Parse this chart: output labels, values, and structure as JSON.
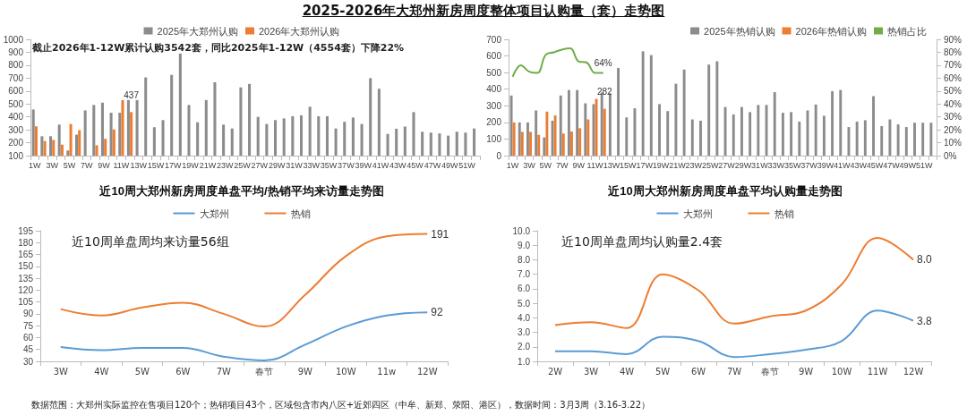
{
  "chart_data": [
    {
      "type": "bar",
      "title": "2025-2026年大郑州新房周度整体项目认购量（套）走势图",
      "categories": [
        "1W",
        null,
        "3W",
        null,
        "5W",
        null,
        "7W",
        null,
        "9W",
        null,
        "11W",
        null,
        "13W",
        null,
        "15W",
        null,
        "17W",
        null,
        "19W",
        null,
        "21W",
        null,
        "23W",
        null,
        "25W",
        null,
        "27W",
        null,
        "29W",
        null,
        "31W",
        null,
        "33W",
        null,
        "35W",
        null,
        "37W",
        null,
        "39W",
        null,
        "41W",
        null,
        "43W",
        null,
        "45W",
        null,
        "47W",
        null,
        "49W",
        null,
        "51W",
        null
      ],
      "series": [
        {
          "name": "2025年大郑州认购",
          "color": "#8c8c8c",
          "values": [
            457,
            250,
            250,
            340,
            140,
            262,
            450,
            492,
            510,
            432,
            432,
            530,
            530,
            705,
            320,
            375,
            725,
            890,
            492,
            358,
            530,
            668,
            340,
            310,
            628,
            655,
            400,
            345,
            375,
            388,
            405,
            412,
            478,
            405,
            405,
            310,
            362,
            395,
            345,
            700,
            618,
            268,
            308,
            325,
            437,
            285,
            278,
            272,
            255,
            285,
            278,
            310
          ]
        },
        {
          "name": "2026年大郑州认购",
          "color": "#ed7d31",
          "values": [
            327,
            213,
            222,
            185,
            345,
            297,
            null,
            180,
            230,
            303,
            530,
            437,
            null,
            null,
            null,
            null,
            null,
            null,
            null,
            null,
            null,
            null,
            null,
            null,
            null,
            null,
            null,
            null,
            null,
            null,
            null,
            null,
            null,
            null,
            null,
            null,
            null,
            null,
            null,
            null,
            null,
            null,
            null,
            null,
            null,
            null,
            null,
            null,
            null,
            null,
            null,
            null
          ],
          "value_labels": [
            null,
            null,
            null,
            null,
            null,
            null,
            null,
            null,
            null,
            null,
            null,
            "437",
            null,
            null,
            null,
            null,
            null,
            null,
            null,
            null,
            null,
            null,
            null,
            null,
            null,
            null,
            null,
            null,
            null,
            null,
            null,
            null,
            null,
            null,
            null,
            null,
            null,
            null,
            null,
            null,
            null,
            null,
            null,
            null,
            null,
            null,
            null,
            null,
            null,
            null,
            null,
            null
          ]
        }
      ],
      "ylim": [
        100,
        1000
      ],
      "yticks": [
        100,
        200,
        300,
        400,
        500,
        600,
        700,
        800,
        900,
        1000
      ],
      "grid": false,
      "legend": "top",
      "annotations": [
        "截止2026年1-12W累计认购3542套，同比2025年1-12W（4554套）下降22%"
      ]
    },
    {
      "type": "bar",
      "categories": [
        "1W",
        null,
        "3W",
        null,
        "5W",
        null,
        "7W",
        null,
        "9W",
        null,
        "11W",
        null,
        "13W",
        null,
        "15W",
        null,
        "17W",
        null,
        "19W",
        null,
        "21W",
        null,
        "23W",
        null,
        "25W",
        null,
        "27W",
        null,
        "29W",
        null,
        "31W",
        null,
        "33W",
        null,
        "35W",
        null,
        "37W",
        null,
        "39W",
        null,
        "41W",
        null,
        "43W",
        null,
        "45W",
        null,
        "47W",
        null,
        "49W",
        null,
        "51W",
        null
      ],
      "series": [
        {
          "name": "2025年热销认购",
          "color": "#8c8c8c",
          "values": [
            362,
            200,
            200,
            272,
            110,
            210,
            362,
            395,
            395,
            315,
            310,
            380,
            375,
            528,
            230,
            285,
            628,
            605,
            310,
            268,
            433,
            518,
            218,
            210,
            548,
            568,
            293,
            248,
            293,
            262,
            305,
            305,
            382,
            258,
            262,
            205,
            272,
            308,
            240,
            388,
            395,
            172,
            205,
            213,
            358,
            178,
            218,
            188,
            172,
            198,
            198,
            198
          ]
        },
        {
          "name": "2026年热销认购",
          "color": "#ed7d31",
          "values": [
            200,
            143,
            143,
            125,
            265,
            242,
            133,
            145,
            165,
            218,
            342,
            282,
            null,
            null,
            null,
            null,
            null,
            null,
            null,
            null,
            null,
            null,
            null,
            null,
            null,
            null,
            null,
            null,
            null,
            null,
            null,
            null,
            null,
            null,
            null,
            null,
            null,
            null,
            null,
            null,
            null,
            null,
            null,
            null,
            null,
            null,
            null,
            null,
            null,
            null,
            null,
            null
          ],
          "value_labels": [
            null,
            null,
            null,
            null,
            null,
            null,
            null,
            null,
            null,
            null,
            null,
            "282",
            null,
            null,
            null,
            null,
            null,
            null,
            null,
            null,
            null,
            null,
            null,
            null,
            null,
            null,
            null,
            null,
            null,
            null,
            null,
            null,
            null,
            null,
            null,
            null,
            null,
            null,
            null,
            null,
            null,
            null,
            null,
            null,
            null,
            null,
            null,
            null,
            null,
            null,
            null,
            null
          ]
        },
        {
          "name": "热销占比",
          "type": "line",
          "axis": "y2",
          "color": "#70ad47",
          "values": [
            61,
            70,
            65,
            64,
            78,
            80,
            82,
            83,
            73,
            72,
            64,
            64,
            null,
            null,
            null,
            null,
            null,
            null,
            null,
            null,
            null,
            null,
            null,
            null,
            null,
            null,
            null,
            null,
            null,
            null,
            null,
            null,
            null,
            null,
            null,
            null,
            null,
            null,
            null,
            null,
            null,
            null,
            null,
            null,
            null,
            null,
            null,
            null,
            null,
            null,
            null,
            null
          ],
          "value_labels": [
            null,
            null,
            null,
            null,
            null,
            null,
            null,
            null,
            null,
            null,
            null,
            "64%",
            null,
            null,
            null,
            null,
            null,
            null,
            null,
            null,
            null,
            null,
            null,
            null,
            null,
            null,
            null,
            null,
            null,
            null,
            null,
            null,
            null,
            null,
            null,
            null,
            null,
            null,
            null,
            null,
            null,
            null,
            null,
            null,
            null,
            null,
            null,
            null,
            null,
            null,
            null,
            null
          ]
        }
      ],
      "ylim": [
        0,
        700
      ],
      "yticks": [
        0,
        100,
        200,
        300,
        400,
        500,
        600,
        700
      ],
      "y2lim": [
        0,
        90
      ],
      "y2ticks": [
        {
          "value": 0,
          "label": "0%"
        },
        {
          "value": 10,
          "label": "10%"
        },
        {
          "value": 20,
          "label": "20%"
        },
        {
          "value": 30,
          "label": "30%"
        },
        {
          "value": 40,
          "label": "40%"
        },
        {
          "value": 50,
          "label": "50%"
        },
        {
          "value": 60,
          "label": "60%"
        },
        {
          "value": 70,
          "label": "70%"
        },
        {
          "value": 80,
          "label": "80%"
        },
        {
          "value": 90,
          "label": "90%"
        }
      ],
      "grid": false,
      "legend": "top right",
      "marker": "none"
    },
    {
      "type": "line",
      "title": "近10周大郑州新房周度单盘平均/热销平均来访量走势图",
      "categories": [
        "3W",
        "4W",
        "5W",
        "6W",
        "7W",
        "春节",
        "9W",
        "10W",
        "11w",
        "12W"
      ],
      "series": [
        {
          "name": "大郑州",
          "color": "#5b9bd5",
          "values": [
            48,
            44,
            47,
            47,
            36,
            31,
            51,
            74,
            88,
            92
          ],
          "value_labels": [
            null,
            null,
            null,
            null,
            null,
            null,
            null,
            null,
            null,
            "92"
          ]
        },
        {
          "name": "热销",
          "color": "#ed7d31",
          "values": [
            96,
            88,
            98,
            104,
            90,
            74,
            114,
            163,
            188,
            191
          ],
          "value_labels": [
            null,
            null,
            null,
            null,
            null,
            null,
            null,
            null,
            null,
            "191"
          ]
        }
      ],
      "ylim": [
        30,
        195
      ],
      "yticks": [
        30,
        45,
        60,
        75,
        90,
        105,
        120,
        135,
        150,
        165,
        180,
        195
      ],
      "grid": false,
      "legend": "top",
      "marker": "none",
      "annotations": [
        "近10周单盘周均来访量56组"
      ]
    },
    {
      "type": "line",
      "title": "近10周大郑州新房周度单盘平均认购量走势图",
      "categories": [
        "2W",
        "3W",
        "4W",
        "5W",
        "6W",
        "7W",
        "春节",
        "9W",
        "10W",
        "11W",
        "12W"
      ],
      "series": [
        {
          "name": "大郑州",
          "color": "#5b9bd5",
          "values": [
            1.7,
            1.7,
            1.5,
            2.7,
            2.4,
            1.3,
            1.5,
            1.8,
            2.4,
            4.5,
            3.8
          ],
          "value_labels": [
            null,
            null,
            null,
            null,
            null,
            null,
            null,
            null,
            null,
            null,
            "3.8"
          ]
        },
        {
          "name": "热销",
          "color": "#ed7d31",
          "values": [
            3.5,
            3.7,
            3.3,
            7.0,
            5.9,
            3.6,
            4.1,
            4.5,
            6.3,
            9.5,
            8.0
          ],
          "value_labels": [
            null,
            null,
            null,
            null,
            null,
            null,
            null,
            null,
            null,
            null,
            "8.0"
          ]
        }
      ],
      "ylim": [
        1,
        10
      ],
      "yticks": [
        {
          "value": 1,
          "label": "1.0"
        },
        {
          "value": 2,
          "label": "2.0"
        },
        {
          "value": 3,
          "label": "3.0"
        },
        {
          "value": 4,
          "label": "4.0"
        },
        {
          "value": 5,
          "label": "5.0"
        },
        {
          "value": 6,
          "label": "6.0"
        },
        {
          "value": 7,
          "label": "7.0"
        },
        {
          "value": 8,
          "label": "8.0"
        },
        {
          "value": 9,
          "label": "9.0"
        },
        {
          "value": 10,
          "label": "10.0"
        }
      ],
      "grid": false,
      "legend": "top",
      "marker": "none",
      "annotations": [
        "近10周单盘周均认购量2.4套",
        "数据范围：大郑州实际监控在售项目120个；热销项目43个，区域包含市内八区+近郊四区（中牟、新郑、荥阳、港区），数据时间：3月3周（3.16-3.22）"
      ]
    }
  ]
}
